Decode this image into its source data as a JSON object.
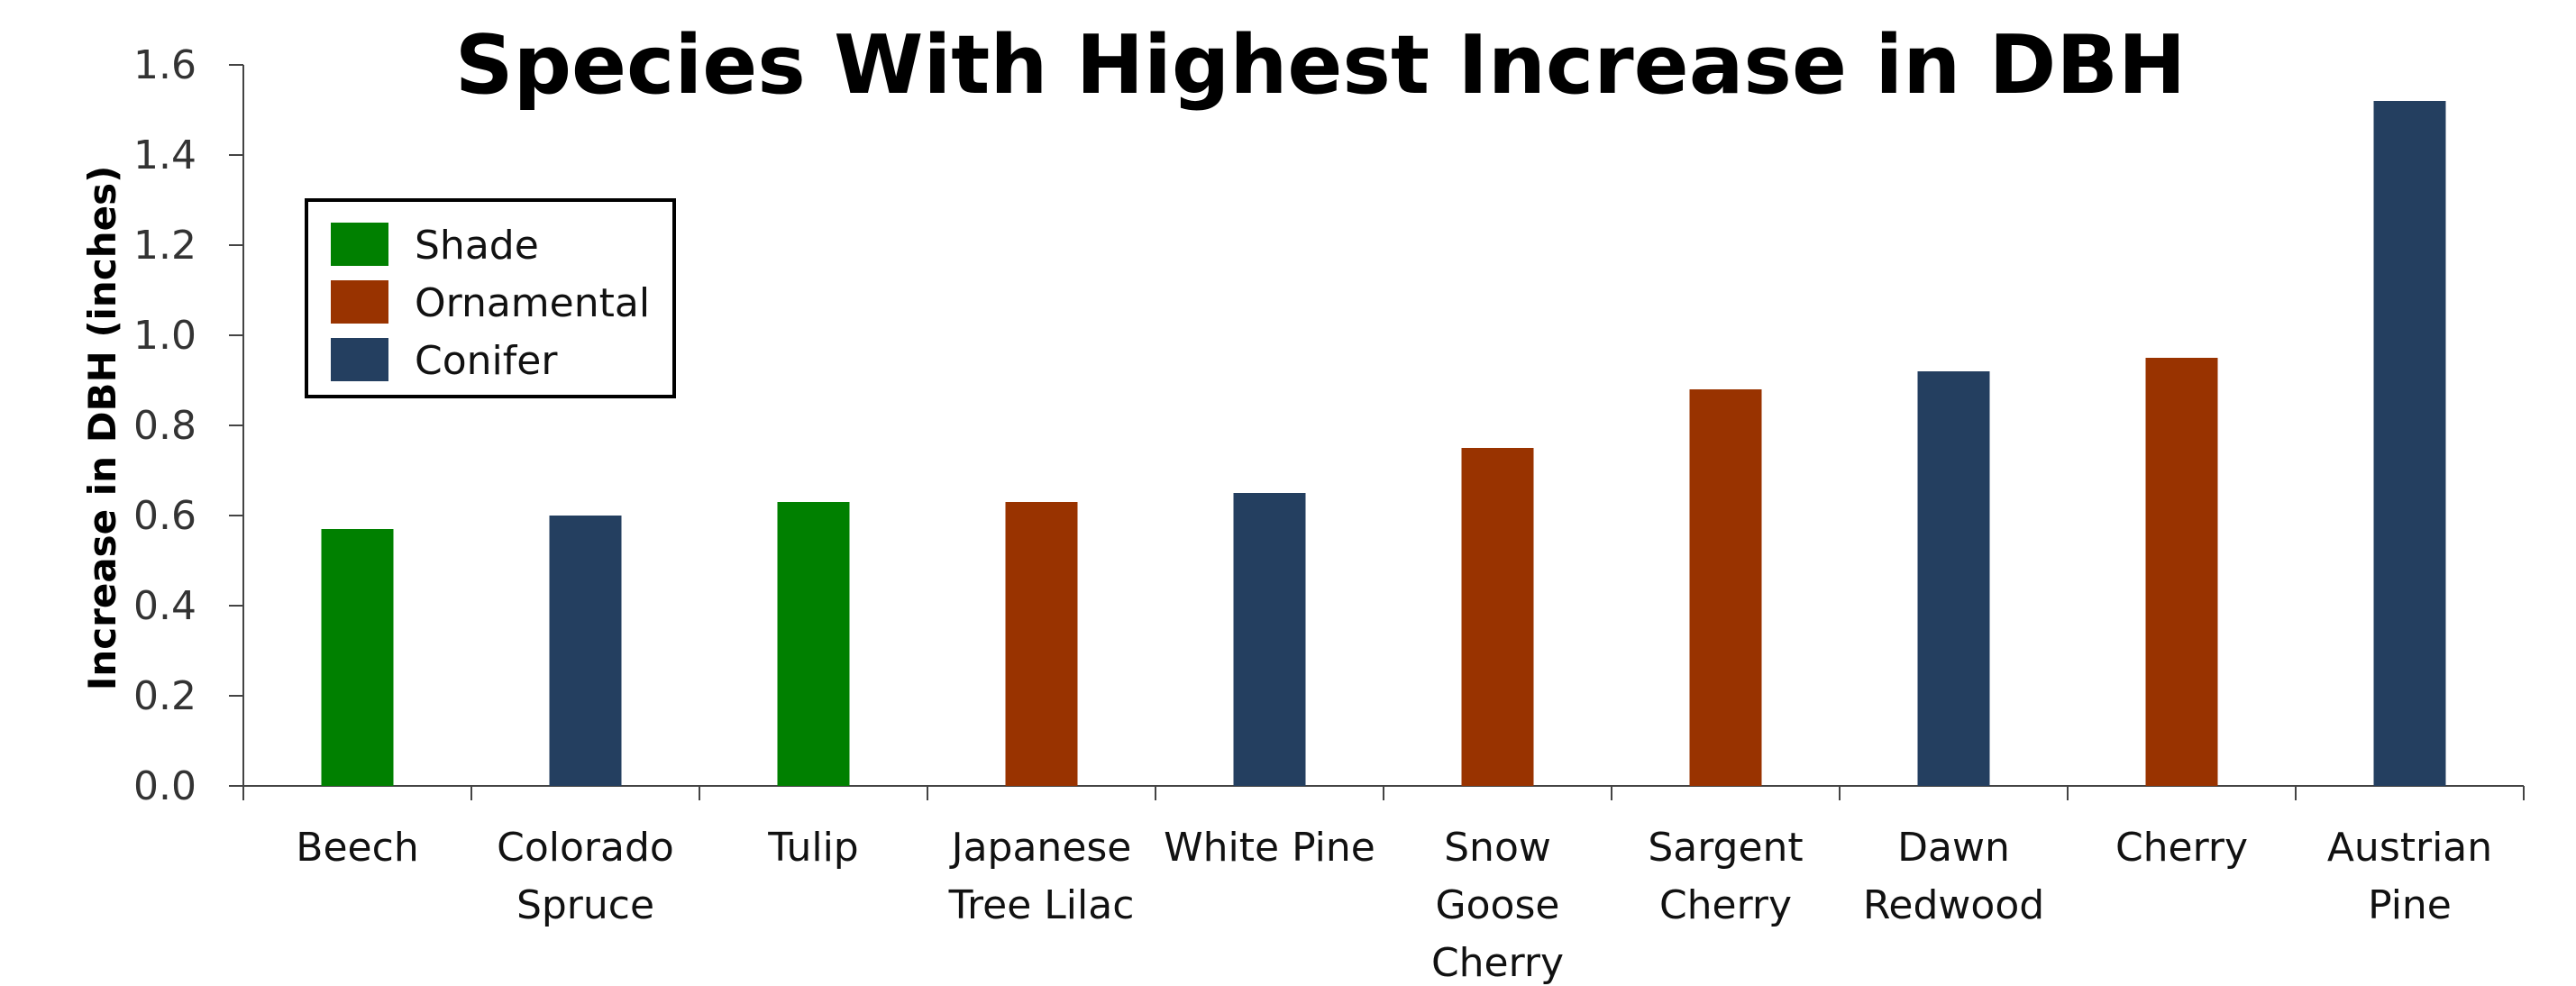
{
  "chart_data": {
    "type": "bar",
    "title": "Species With Highest Increase in DBH",
    "ylabel": "Increase in DBH (inches)",
    "xlabel": "",
    "ylim": [
      0,
      1.6
    ],
    "yticks": [
      "0.0",
      "0.2",
      "0.4",
      "0.6",
      "0.8",
      "1.0",
      "1.2",
      "1.4",
      "1.6"
    ],
    "grid": false,
    "legend_position": "top-left",
    "legend": [
      {
        "name": "Shade",
        "color": "#008000"
      },
      {
        "name": "Ornamental",
        "color": "#993300"
      },
      {
        "name": "Conifer",
        "color": "#243f60"
      }
    ],
    "categories": [
      [
        "Beech"
      ],
      [
        "Colorado",
        "Spruce"
      ],
      [
        "Tulip"
      ],
      [
        "Japanese",
        "Tree Lilac"
      ],
      [
        "White Pine"
      ],
      [
        "Snow",
        "Goose",
        "Cherry"
      ],
      [
        "Sargent",
        "Cherry"
      ],
      [
        "Dawn",
        "Redwood"
      ],
      [
        "Cherry"
      ],
      [
        "Austrian",
        "Pine"
      ]
    ],
    "values": [
      0.57,
      0.6,
      0.63,
      0.63,
      0.65,
      0.75,
      0.88,
      0.92,
      0.95,
      1.52
    ],
    "groups": [
      "Shade",
      "Conifer",
      "Shade",
      "Ornamental",
      "Conifer",
      "Ornamental",
      "Ornamental",
      "Conifer",
      "Ornamental",
      "Conifer"
    ]
  }
}
